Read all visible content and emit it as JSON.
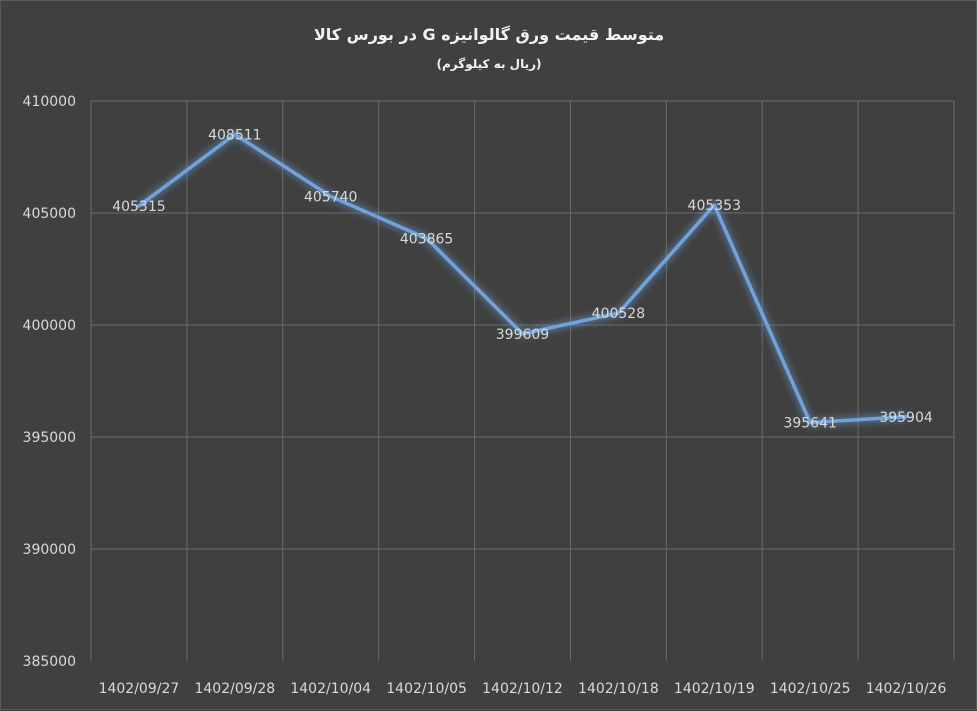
{
  "chart_data": {
    "type": "line",
    "title": "متوسط قیمت ورق گالوانیزه G در بورس کالا",
    "subtitle": "(ریال به کیلوگرم)",
    "xlabel": "",
    "ylabel": "",
    "categories": [
      "1402/09/27",
      "1402/09/28",
      "1402/10/04",
      "1402/10/05",
      "1402/10/12",
      "1402/10/18",
      "1402/10/19",
      "1402/10/25",
      "1402/10/26"
    ],
    "series": [
      {
        "values": [
          405315,
          408511,
          405740,
          403865,
          399609,
          400528,
          405353,
          395641,
          395904
        ]
      }
    ],
    "data_labels": [
      "405315",
      "408511",
      "405740",
      "403865",
      "399609",
      "400528",
      "405353",
      "395641",
      "395904"
    ],
    "y_ticks": [
      "385000",
      "390000",
      "395000",
      "400000",
      "405000",
      "410000"
    ],
    "ylim": [
      385000,
      410000
    ],
    "grid": true,
    "legend": "none",
    "line_color": "#6fa3dc",
    "background_color": "#404040"
  }
}
